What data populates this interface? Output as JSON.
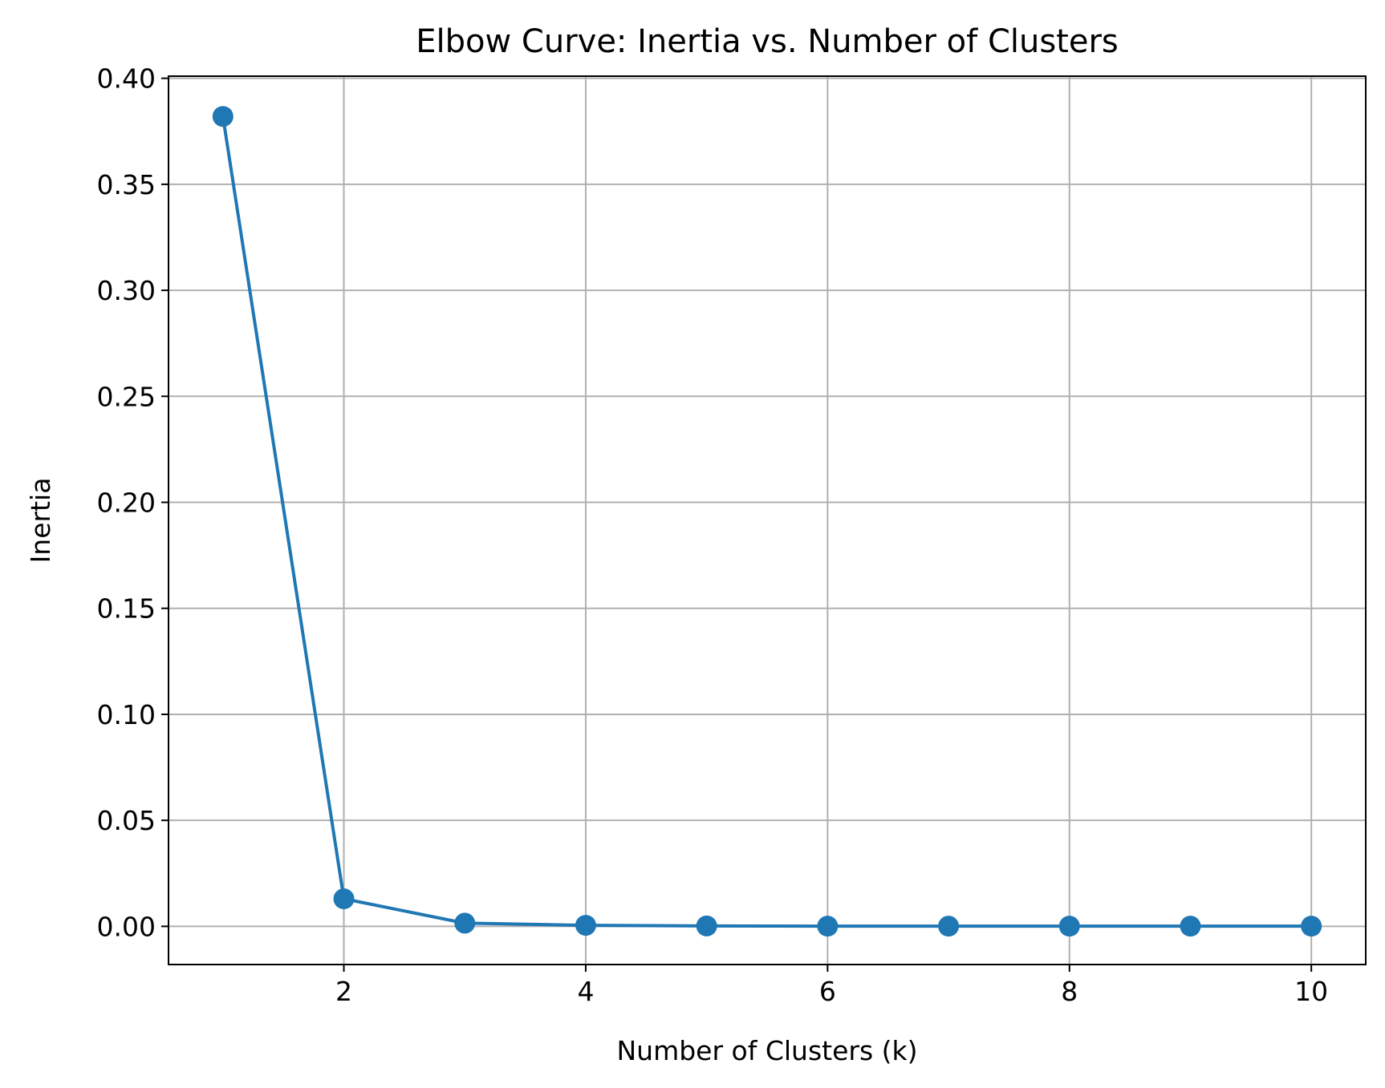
{
  "chart_data": {
    "type": "line",
    "title": "Elbow Curve: Inertia vs. Number of Clusters",
    "xlabel": "Number of Clusters (k)",
    "ylabel": "Inertia",
    "x": [
      1,
      2,
      3,
      4,
      5,
      6,
      7,
      8,
      9,
      10
    ],
    "series": [
      {
        "values": [
          0.382,
          0.013,
          0.0015,
          0.0005,
          0.0002,
          0.0001,
          0.0001,
          0.0001,
          0.0001,
          0.0001
        ]
      }
    ],
    "xlim": [
      0.55,
      10.45
    ],
    "ylim": [
      -0.018,
      0.401
    ],
    "xticks": [
      2,
      4,
      6,
      8,
      10
    ],
    "xtick_labels": [
      "2",
      "4",
      "6",
      "8",
      "10"
    ],
    "yticks": [
      0.0,
      0.05,
      0.1,
      0.15,
      0.2,
      0.25,
      0.3,
      0.35,
      0.4
    ],
    "ytick_labels": [
      "0.00",
      "0.05",
      "0.10",
      "0.15",
      "0.20",
      "0.25",
      "0.30",
      "0.35",
      "0.40"
    ],
    "grid": true,
    "marker": "circle",
    "color": "#1f77b4"
  }
}
